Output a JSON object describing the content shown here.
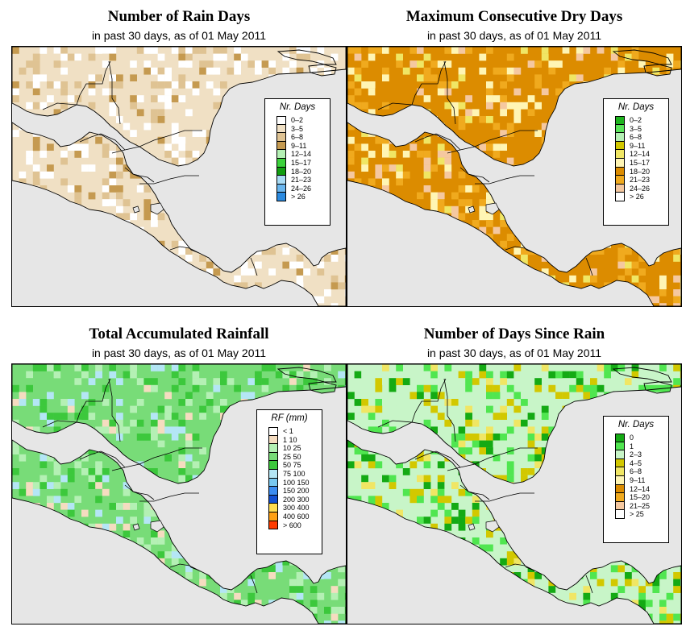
{
  "subtitle_common": "in past 30 days, as of  01 May 2011",
  "panels": [
    {
      "id": "rain-days",
      "title": "Number of Rain Days",
      "subtitle": "in past 30 days, as of  01 May 2011",
      "legend_title": "Nr. Days",
      "legend": [
        {
          "label": "0–2",
          "color": "#ffffff"
        },
        {
          "label": "3–5",
          "color": "#f0e0c4"
        },
        {
          "label": "6–8",
          "color": "#dfc393"
        },
        {
          "label": "9–11",
          "color": "#c59a50"
        },
        {
          "label": "12–14",
          "color": "#b4f0b4"
        },
        {
          "label": "15–17",
          "color": "#3cd23c"
        },
        {
          "label": "18–20",
          "color": "#129e12"
        },
        {
          "label": "21–23",
          "color": "#aadcf5"
        },
        {
          "label": "24–26",
          "color": "#6ab6ee"
        },
        {
          "label": "> 26",
          "color": "#2a8ae0"
        }
      ]
    },
    {
      "id": "max-dry-days",
      "title": "Maximum Consecutive Dry Days",
      "subtitle": "in past 30 days, as of  01 May 2011",
      "legend_title": "Nr. Days",
      "legend": [
        {
          "label": "0–2",
          "color": "#1eb41e"
        },
        {
          "label": "3–5",
          "color": "#5ae65a"
        },
        {
          "label": "6–8",
          "color": "#b4f0b4"
        },
        {
          "label": "9–11",
          "color": "#d2c800"
        },
        {
          "label": "12–14",
          "color": "#f0e664"
        },
        {
          "label": "15–17",
          "color": "#fff5b4"
        },
        {
          "label": "18–20",
          "color": "#dc8c00"
        },
        {
          "label": "21–23",
          "color": "#f0aa1e"
        },
        {
          "label": "24–26",
          "color": "#f5c8a0"
        },
        {
          "label": "> 26",
          "color": "#ffffff"
        }
      ]
    },
    {
      "id": "total-rainfall",
      "title": "Total Accumulated Rainfall",
      "subtitle": "in past 30 days, as of  01 May 2011",
      "legend_title": "RF (mm)",
      "legend": [
        {
          "label": "< 1",
          "color": "#ffffff"
        },
        {
          "label": "1  10",
          "color": "#f5dcc0"
        },
        {
          "label": "10  25",
          "color": "#b4f0b4"
        },
        {
          "label": "25  50",
          "color": "#78dc78"
        },
        {
          "label": "50  75",
          "color": "#3cc83c"
        },
        {
          "label": "75  100",
          "color": "#b4e6f5"
        },
        {
          "label": "100  150",
          "color": "#78c8f0"
        },
        {
          "label": "150  200",
          "color": "#3c8cf0"
        },
        {
          "label": "200  300",
          "color": "#1450d2"
        },
        {
          "label": "300  400",
          "color": "#ffdc50"
        },
        {
          "label": "400  600",
          "color": "#ffa014"
        },
        {
          "label": "> 600",
          "color": "#ff3c00"
        }
      ]
    },
    {
      "id": "days-since-rain",
      "title": "Number of Days Since Rain",
      "subtitle": "in past 30 days, as of  01 May 2011",
      "legend_title": "Nr. Days",
      "legend": [
        {
          "label": "0",
          "color": "#14aa14"
        },
        {
          "label": "1",
          "color": "#50e650"
        },
        {
          "label": "2–3",
          "color": "#c8f5c8"
        },
        {
          "label": "4–5",
          "color": "#d2c800"
        },
        {
          "label": "6–8",
          "color": "#f0e664"
        },
        {
          "label": "9–11",
          "color": "#fff5b4"
        },
        {
          "label": "12–14",
          "color": "#dc8c00"
        },
        {
          "label": "15–20",
          "color": "#f0aa1e"
        },
        {
          "label": "21–25",
          "color": "#f5c8a0"
        },
        {
          "label": "> 25",
          "color": "#ffffff"
        }
      ]
    }
  ]
}
